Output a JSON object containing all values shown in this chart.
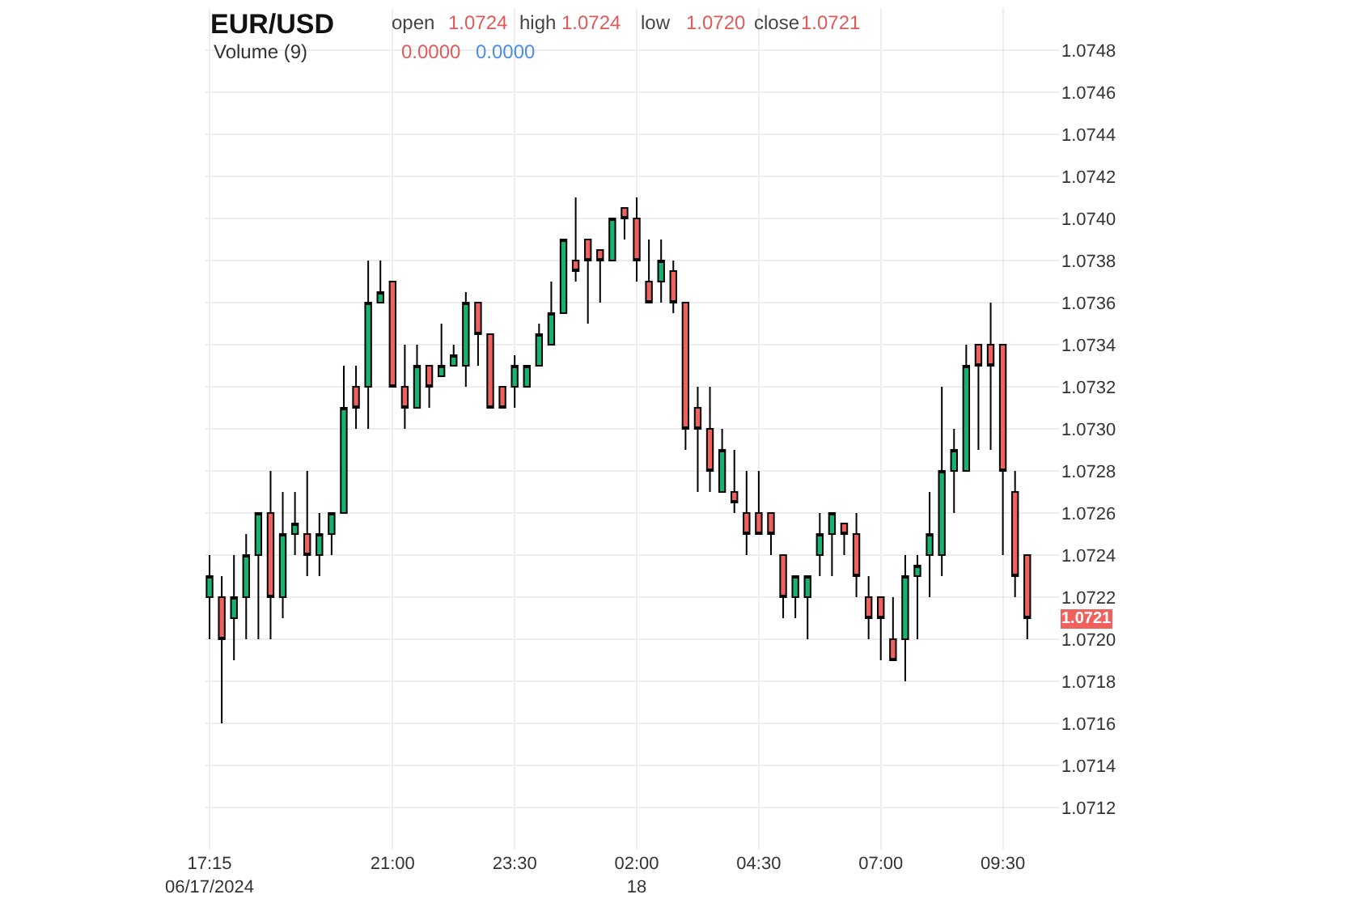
{
  "chart_data": {
    "type": "candlestick",
    "title": "EUR/USD",
    "annotations": [
      "open",
      "1.0724",
      "high",
      "1.0724",
      "low",
      "1.0720",
      "close",
      "1.0721",
      "Volume (9)",
      "0.0000",
      "0.0000",
      {
        "text": "1.0721",
        "y": 1.0721
      }
    ],
    "x": [
      "2024-06-17T17:15",
      "2024-06-17T17:30",
      "2024-06-17T17:45",
      "2024-06-17T18:00",
      "2024-06-17T18:15",
      "2024-06-17T18:30",
      "2024-06-17T18:45",
      "2024-06-17T19:00",
      "2024-06-17T19:15",
      "2024-06-17T19:30",
      "2024-06-17T19:45",
      "2024-06-17T20:00",
      "2024-06-17T20:15",
      "2024-06-17T20:30",
      "2024-06-17T20:45",
      "2024-06-17T21:00",
      "2024-06-17T21:15",
      "2024-06-17T21:30",
      "2024-06-17T21:45",
      "2024-06-17T22:00",
      "2024-06-17T22:15",
      "2024-06-17T22:30",
      "2024-06-17T22:45",
      "2024-06-17T23:00",
      "2024-06-17T23:15",
      "2024-06-17T23:30",
      "2024-06-17T23:45",
      "2024-06-18T00:00",
      "2024-06-18T00:15",
      "2024-06-18T00:30",
      "2024-06-18T00:45",
      "2024-06-18T01:00",
      "2024-06-18T01:15",
      "2024-06-18T01:30",
      "2024-06-18T01:45",
      "2024-06-18T02:00",
      "2024-06-18T02:15",
      "2024-06-18T02:30",
      "2024-06-18T02:45",
      "2024-06-18T03:00",
      "2024-06-18T03:15",
      "2024-06-18T03:30",
      "2024-06-18T03:45",
      "2024-06-18T04:00",
      "2024-06-18T04:15",
      "2024-06-18T04:30",
      "2024-06-18T04:45",
      "2024-06-18T05:00",
      "2024-06-18T05:15",
      "2024-06-18T05:30",
      "2024-06-18T05:45",
      "2024-06-18T06:00",
      "2024-06-18T06:15",
      "2024-06-18T06:30",
      "2024-06-18T06:45",
      "2024-06-18T07:00",
      "2024-06-18T07:15",
      "2024-06-18T07:30",
      "2024-06-18T07:45",
      "2024-06-18T08:00",
      "2024-06-18T08:15",
      "2024-06-18T08:30",
      "2024-06-18T08:45",
      "2024-06-18T09:00",
      "2024-06-18T09:15",
      "2024-06-18T09:30",
      "2024-06-18T09:45",
      "2024-06-18T10:00"
    ],
    "ohlc": [
      [
        1.0722,
        1.0724,
        1.072,
        1.0723
      ],
      [
        1.0722,
        1.0723,
        1.0716,
        1.072
      ],
      [
        1.0721,
        1.0724,
        1.0719,
        1.0722
      ],
      [
        1.0722,
        1.0725,
        1.072,
        1.0724
      ],
      [
        1.0724,
        1.0726,
        1.072,
        1.0726
      ],
      [
        1.0726,
        1.0728,
        1.072,
        1.0722
      ],
      [
        1.0722,
        1.0727,
        1.0721,
        1.0725
      ],
      [
        1.0725,
        1.0727,
        1.0724,
        1.07255
      ],
      [
        1.0725,
        1.0728,
        1.0723,
        1.0724
      ],
      [
        1.0724,
        1.0726,
        1.0723,
        1.0725
      ],
      [
        1.0725,
        1.0726,
        1.0724,
        1.0726
      ],
      [
        1.0726,
        1.0733,
        1.0726,
        1.0731
      ],
      [
        1.0732,
        1.0733,
        1.073,
        1.0731
      ],
      [
        1.0732,
        1.0738,
        1.073,
        1.0736
      ],
      [
        1.0736,
        1.0738,
        1.0736,
        1.07365
      ],
      [
        1.0737,
        1.0737,
        1.0732,
        1.0732
      ],
      [
        1.0732,
        1.0734,
        1.073,
        1.0731
      ],
      [
        1.0731,
        1.0734,
        1.0731,
        1.0733
      ],
      [
        1.0733,
        1.0733,
        1.0731,
        1.0732
      ],
      [
        1.07325,
        1.0735,
        1.07325,
        1.0733
      ],
      [
        1.0733,
        1.0734,
        1.0733,
        1.07335
      ],
      [
        1.0733,
        1.07365,
        1.0732,
        1.0736
      ],
      [
        1.0736,
        1.0736,
        1.0733,
        1.07345
      ],
      [
        1.07345,
        1.07345,
        1.0731,
        1.0731
      ],
      [
        1.0732,
        1.0732,
        1.0731,
        1.0731
      ],
      [
        1.0732,
        1.07335,
        1.0731,
        1.0733
      ],
      [
        1.0732,
        1.0733,
        1.0732,
        1.0733
      ],
      [
        1.0733,
        1.0735,
        1.0733,
        1.07345
      ],
      [
        1.0734,
        1.0737,
        1.0734,
        1.07355
      ],
      [
        1.07355,
        1.0739,
        1.07355,
        1.0739
      ],
      [
        1.0738,
        1.0741,
        1.0737,
        1.07375
      ],
      [
        1.0739,
        1.0739,
        1.0735,
        1.0738
      ],
      [
        1.07385,
        1.07385,
        1.0736,
        1.0738
      ],
      [
        1.0738,
        1.074,
        1.0738,
        1.074
      ],
      [
        1.07405,
        1.07405,
        1.0739,
        1.074
      ],
      [
        1.074,
        1.0741,
        1.0737,
        1.0738
      ],
      [
        1.0737,
        1.0739,
        1.0736,
        1.0736
      ],
      [
        1.0737,
        1.0739,
        1.0736,
        1.0738
      ],
      [
        1.07375,
        1.0738,
        1.07355,
        1.0736
      ],
      [
        1.0736,
        1.0736,
        1.0729,
        1.073
      ],
      [
        1.0731,
        1.0732,
        1.0727,
        1.073
      ],
      [
        1.073,
        1.0732,
        1.0727,
        1.0728
      ],
      [
        1.0727,
        1.073,
        1.0727,
        1.0729
      ],
      [
        1.0727,
        1.0729,
        1.0726,
        1.07265
      ],
      [
        1.0726,
        1.0728,
        1.0724,
        1.0725
      ],
      [
        1.0726,
        1.0728,
        1.0725,
        1.0725
      ],
      [
        1.0726,
        1.0726,
        1.0724,
        1.0725
      ],
      [
        1.0724,
        1.0724,
        1.0721,
        1.0722
      ],
      [
        1.0722,
        1.0723,
        1.0721,
        1.0723
      ],
      [
        1.0722,
        1.0723,
        1.072,
        1.0723
      ],
      [
        1.0724,
        1.0726,
        1.0723,
        1.0725
      ],
      [
        1.0725,
        1.0726,
        1.0723,
        1.0726
      ],
      [
        1.07255,
        1.07255,
        1.0724,
        1.0725
      ],
      [
        1.0725,
        1.0726,
        1.0722,
        1.0723
      ],
      [
        1.0722,
        1.0723,
        1.072,
        1.0721
      ],
      [
        1.0722,
        1.0722,
        1.0719,
        1.0721
      ],
      [
        1.072,
        1.0722,
        1.0719,
        1.0719
      ],
      [
        1.072,
        1.0724,
        1.0718,
        1.0723
      ],
      [
        1.0723,
        1.0724,
        1.072,
        1.07235
      ],
      [
        1.0724,
        1.0727,
        1.0722,
        1.0725
      ],
      [
        1.0724,
        1.0732,
        1.0723,
        1.0728
      ],
      [
        1.0728,
        1.073,
        1.0726,
        1.0729
      ],
      [
        1.0728,
        1.0734,
        1.0728,
        1.0733
      ],
      [
        1.0734,
        1.0734,
        1.0729,
        1.0733
      ],
      [
        1.0734,
        1.0736,
        1.0729,
        1.0733
      ],
      [
        1.0734,
        1.0734,
        1.0724,
        1.0728
      ],
      [
        1.0727,
        1.0728,
        1.0722,
        1.0723
      ],
      [
        1.0724,
        1.0724,
        1.072,
        1.0721
      ]
    ],
    "colors": [
      "#17b26f",
      "#f0605d",
      "#17b26f",
      "#17b26f",
      "#17b26f",
      "#f0605d",
      "#17b26f",
      "#17b26f",
      "#f0605d",
      "#17b26f",
      "#17b26f",
      "#17b26f",
      "#f0605d",
      "#17b26f",
      "#17b26f",
      "#f0605d",
      "#f0605d",
      "#17b26f",
      "#f0605d",
      "#17b26f",
      "#17b26f",
      "#17b26f",
      "#f0605d",
      "#f0605d",
      "#f0605d",
      "#17b26f",
      "#17b26f",
      "#17b26f",
      "#17b26f",
      "#17b26f",
      "#f0605d",
      "#f0605d",
      "#f0605d",
      "#17b26f",
      "#f0605d",
      "#f0605d",
      "#f0605d",
      "#17b26f",
      "#f0605d",
      "#f0605d",
      "#f0605d",
      "#f0605d",
      "#17b26f",
      "#f0605d",
      "#f0605d",
      "#f0605d",
      "#f0605d",
      "#f0605d",
      "#17b26f",
      "#17b26f",
      "#17b26f",
      "#17b26f",
      "#f0605d",
      "#f0605d",
      "#f0605d",
      "#f0605d",
      "#f0605d",
      "#17b26f",
      "#17b26f",
      "#17b26f",
      "#17b26f",
      "#17b26f",
      "#17b26f",
      "#f0605d",
      "#f0605d",
      "#f0605d",
      "#f0605d",
      "#f0605d"
    ],
    "xlim": [
      "2024-06-17T17:10",
      "2024-06-18T10:40"
    ],
    "xticks": [
      {
        "value": "2024-06-17T17:15",
        "label": "17:15\n06/17/2024"
      },
      {
        "value": "2024-06-17T21:00",
        "label": "21:00"
      },
      {
        "value": "2024-06-17T23:30",
        "label": "23:30"
      },
      {
        "value": "2024-06-18T02:00",
        "label": "02:00\n18"
      },
      {
        "value": "2024-06-18T04:30",
        "label": "04:30"
      },
      {
        "value": "2024-06-18T07:00",
        "label": "07:00"
      },
      {
        "value": "2024-06-18T09:30",
        "label": "09:30"
      }
    ],
    "ylim": [
      1.071,
      1.075
    ],
    "yticks": [
      {
        "value": 1.0712,
        "label": "1.0712"
      },
      {
        "value": 1.0714,
        "label": "1.0714"
      },
      {
        "value": 1.0716,
        "label": "1.0716"
      },
      {
        "value": 1.0718,
        "label": "1.0718"
      },
      {
        "value": 1.072,
        "label": "1.0720"
      },
      {
        "value": 1.0722,
        "label": "1.0722"
      },
      {
        "value": 1.0724,
        "label": "1.0724"
      },
      {
        "value": 1.0726,
        "label": "1.0726"
      },
      {
        "value": 1.0728,
        "label": "1.0728"
      },
      {
        "value": 1.073,
        "label": "1.0730"
      },
      {
        "value": 1.0732,
        "label": "1.0732"
      },
      {
        "value": 1.0734,
        "label": "1.0734"
      },
      {
        "value": 1.0736,
        "label": "1.0736"
      },
      {
        "value": 1.0738,
        "label": "1.0738"
      },
      {
        "value": 1.074,
        "label": "1.0740"
      },
      {
        "value": 1.0742,
        "label": "1.0742"
      },
      {
        "value": 1.0744,
        "label": "1.0744"
      },
      {
        "value": 1.0746,
        "label": "1.0746"
      },
      {
        "value": 1.0748,
        "label": "1.0748"
      }
    ],
    "grid": true
  }
}
